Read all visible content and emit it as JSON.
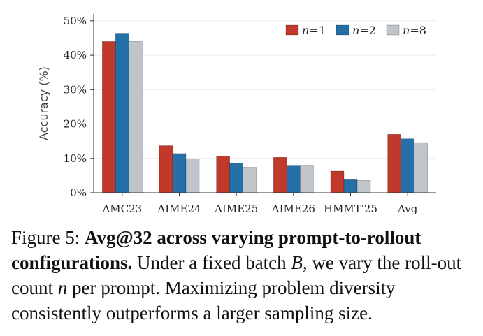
{
  "chart_data": {
    "type": "bar",
    "categories": [
      "AMC23",
      "AIME24",
      "AIME25",
      "AIME26",
      "HMMT'25",
      "Avg"
    ],
    "series": [
      {
        "name": "n=1",
        "legend_var": "n",
        "legend_value": "=1",
        "color": "#c0392b",
        "values": [
          44.0,
          13.7,
          10.7,
          10.3,
          6.3,
          17.0
        ]
      },
      {
        "name": "n=2",
        "legend_var": "n",
        "legend_value": "=2",
        "color": "#2470a8",
        "values": [
          46.4,
          11.4,
          8.6,
          8.0,
          4.0,
          15.7
        ]
      },
      {
        "name": "n=8",
        "legend_var": "n",
        "legend_value": "=8",
        "color": "#bfc5c9",
        "values": [
          44.0,
          9.9,
          7.4,
          8.0,
          3.6,
          14.6
        ]
      }
    ],
    "ylabel": "Accuracy (%)",
    "xlabel": "",
    "ylim": [
      0,
      52
    ],
    "yticks": [
      0,
      10,
      20,
      30,
      40,
      50
    ],
    "ytick_labels": [
      "0%",
      "10%",
      "20%",
      "30%",
      "40%",
      "50%"
    ],
    "grid": true,
    "legend_position": "top-right"
  },
  "caption": {
    "prefix": "Figure 5: ",
    "bold": "Avg@32 across varying prompt-to-rollout configurations.",
    "text1": " Under a fixed batch ",
    "var_b": "B",
    "text2": ", we vary the roll-out count ",
    "var_n": "n",
    "text3": " per prompt. Maximizing problem diversity consistently outperforms a larger sampling size."
  }
}
